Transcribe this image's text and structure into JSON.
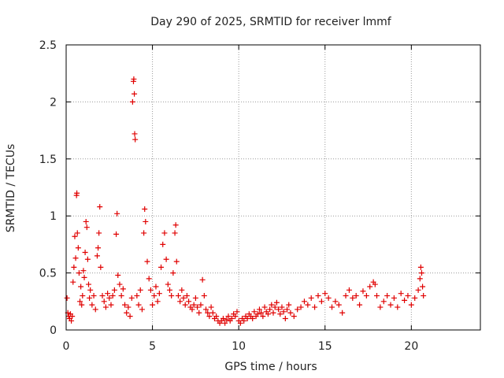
{
  "chart_data": {
    "type": "scatter",
    "title": "Day 290 of 2025, SRMTID for receiver lmmf",
    "xlabel": "GPS time / hours",
    "ylabel": "SRMTID / TECUs",
    "xlim": [
      0,
      24
    ],
    "ylim": [
      0,
      2.5
    ],
    "xticks": [
      0,
      5,
      10,
      15,
      20
    ],
    "yticks": [
      0,
      0.5,
      1,
      1.5,
      2,
      2.5
    ],
    "grid": true,
    "marker": "+",
    "series": [
      {
        "name": "SRMTID",
        "color": "#e00000",
        "points": [
          [
            0.05,
            0.28
          ],
          [
            0.1,
            0.15
          ],
          [
            0.15,
            0.12
          ],
          [
            0.2,
            0.1
          ],
          [
            0.25,
            0.14
          ],
          [
            0.3,
            0.08
          ],
          [
            0.35,
            0.12
          ],
          [
            0.4,
            0.42
          ],
          [
            0.45,
            0.55
          ],
          [
            0.5,
            0.82
          ],
          [
            0.55,
            0.63
          ],
          [
            0.6,
            1.18
          ],
          [
            0.62,
            1.2
          ],
          [
            0.65,
            0.85
          ],
          [
            0.7,
            0.72
          ],
          [
            0.75,
            0.5
          ],
          [
            0.8,
            0.25
          ],
          [
            0.85,
            0.38
          ],
          [
            0.9,
            0.22
          ],
          [
            0.95,
            0.3
          ],
          [
            1.0,
            0.52
          ],
          [
            1.05,
            0.46
          ],
          [
            1.1,
            0.68
          ],
          [
            1.15,
            0.95
          ],
          [
            1.2,
            0.9
          ],
          [
            1.25,
            0.62
          ],
          [
            1.3,
            0.4
          ],
          [
            1.35,
            0.28
          ],
          [
            1.4,
            0.35
          ],
          [
            1.5,
            0.22
          ],
          [
            1.6,
            0.3
          ],
          [
            1.7,
            0.18
          ],
          [
            1.8,
            0.65
          ],
          [
            1.85,
            0.72
          ],
          [
            1.9,
            0.85
          ],
          [
            1.95,
            1.08
          ],
          [
            2.0,
            0.55
          ],
          [
            2.1,
            0.3
          ],
          [
            2.2,
            0.25
          ],
          [
            2.3,
            0.2
          ],
          [
            2.4,
            0.32
          ],
          [
            2.5,
            0.28
          ],
          [
            2.6,
            0.22
          ],
          [
            2.7,
            0.3
          ],
          [
            2.8,
            0.35
          ],
          [
            2.9,
            0.84
          ],
          [
            2.95,
            1.02
          ],
          [
            3.0,
            0.48
          ],
          [
            3.1,
            0.4
          ],
          [
            3.2,
            0.3
          ],
          [
            3.3,
            0.36
          ],
          [
            3.4,
            0.22
          ],
          [
            3.5,
            0.15
          ],
          [
            3.6,
            0.2
          ],
          [
            3.7,
            0.12
          ],
          [
            3.8,
            0.28
          ],
          [
            3.85,
            2.0
          ],
          [
            3.9,
            2.18
          ],
          [
            3.92,
            2.2
          ],
          [
            3.95,
            2.07
          ],
          [
            3.97,
            1.72
          ],
          [
            4.0,
            1.67
          ],
          [
            4.1,
            0.3
          ],
          [
            4.2,
            0.22
          ],
          [
            4.3,
            0.35
          ],
          [
            4.4,
            0.18
          ],
          [
            4.5,
            0.85
          ],
          [
            4.55,
            1.06
          ],
          [
            4.6,
            0.95
          ],
          [
            4.7,
            0.6
          ],
          [
            4.8,
            0.45
          ],
          [
            4.9,
            0.35
          ],
          [
            5.0,
            0.22
          ],
          [
            5.1,
            0.3
          ],
          [
            5.2,
            0.38
          ],
          [
            5.3,
            0.25
          ],
          [
            5.4,
            0.32
          ],
          [
            5.5,
            0.55
          ],
          [
            5.6,
            0.75
          ],
          [
            5.7,
            0.85
          ],
          [
            5.8,
            0.62
          ],
          [
            5.9,
            0.4
          ],
          [
            6.0,
            0.35
          ],
          [
            6.1,
            0.3
          ],
          [
            6.2,
            0.5
          ],
          [
            6.3,
            0.85
          ],
          [
            6.35,
            0.92
          ],
          [
            6.4,
            0.6
          ],
          [
            6.5,
            0.3
          ],
          [
            6.6,
            0.25
          ],
          [
            6.7,
            0.35
          ],
          [
            6.8,
            0.28
          ],
          [
            6.9,
            0.22
          ],
          [
            7.0,
            0.3
          ],
          [
            7.1,
            0.25
          ],
          [
            7.2,
            0.2
          ],
          [
            7.3,
            0.18
          ],
          [
            7.4,
            0.22
          ],
          [
            7.5,
            0.28
          ],
          [
            7.6,
            0.2
          ],
          [
            7.7,
            0.15
          ],
          [
            7.8,
            0.22
          ],
          [
            7.9,
            0.44
          ],
          [
            8.0,
            0.3
          ],
          [
            8.1,
            0.18
          ],
          [
            8.2,
            0.15
          ],
          [
            8.3,
            0.12
          ],
          [
            8.4,
            0.2
          ],
          [
            8.5,
            0.15
          ],
          [
            8.6,
            0.1
          ],
          [
            8.7,
            0.12
          ],
          [
            8.8,
            0.08
          ],
          [
            8.9,
            0.06
          ],
          [
            9.0,
            0.08
          ],
          [
            9.1,
            0.1
          ],
          [
            9.2,
            0.06
          ],
          [
            9.3,
            0.09
          ],
          [
            9.4,
            0.12
          ],
          [
            9.5,
            0.08
          ],
          [
            9.6,
            0.1
          ],
          [
            9.7,
            0.14
          ],
          [
            9.8,
            0.12
          ],
          [
            9.9,
            0.16
          ],
          [
            10.0,
            0.08
          ],
          [
            10.1,
            0.06
          ],
          [
            10.2,
            0.1
          ],
          [
            10.3,
            0.08
          ],
          [
            10.4,
            0.12
          ],
          [
            10.5,
            0.1
          ],
          [
            10.6,
            0.14
          ],
          [
            10.7,
            0.12
          ],
          [
            10.8,
            0.1
          ],
          [
            10.9,
            0.16
          ],
          [
            11.0,
            0.12
          ],
          [
            11.1,
            0.14
          ],
          [
            11.2,
            0.18
          ],
          [
            11.3,
            0.15
          ],
          [
            11.4,
            0.12
          ],
          [
            11.5,
            0.2
          ],
          [
            11.6,
            0.16
          ],
          [
            11.7,
            0.14
          ],
          [
            11.8,
            0.18
          ],
          [
            11.9,
            0.22
          ],
          [
            12.0,
            0.15
          ],
          [
            12.1,
            0.2
          ],
          [
            12.2,
            0.24
          ],
          [
            12.3,
            0.18
          ],
          [
            12.4,
            0.14
          ],
          [
            12.5,
            0.2
          ],
          [
            12.6,
            0.16
          ],
          [
            12.7,
            0.1
          ],
          [
            12.8,
            0.18
          ],
          [
            12.9,
            0.22
          ],
          [
            13.0,
            0.15
          ],
          [
            13.2,
            0.12
          ],
          [
            13.4,
            0.18
          ],
          [
            13.6,
            0.2
          ],
          [
            13.8,
            0.25
          ],
          [
            14.0,
            0.22
          ],
          [
            14.2,
            0.28
          ],
          [
            14.4,
            0.2
          ],
          [
            14.6,
            0.3
          ],
          [
            14.8,
            0.25
          ],
          [
            15.0,
            0.32
          ],
          [
            15.2,
            0.28
          ],
          [
            15.4,
            0.2
          ],
          [
            15.6,
            0.25
          ],
          [
            15.8,
            0.22
          ],
          [
            16.0,
            0.15
          ],
          [
            16.2,
            0.3
          ],
          [
            16.4,
            0.35
          ],
          [
            16.6,
            0.28
          ],
          [
            16.8,
            0.3
          ],
          [
            17.0,
            0.22
          ],
          [
            17.2,
            0.34
          ],
          [
            17.4,
            0.3
          ],
          [
            17.6,
            0.38
          ],
          [
            17.8,
            0.42
          ],
          [
            17.9,
            0.4
          ],
          [
            18.0,
            0.3
          ],
          [
            18.2,
            0.2
          ],
          [
            18.4,
            0.25
          ],
          [
            18.6,
            0.3
          ],
          [
            18.8,
            0.22
          ],
          [
            19.0,
            0.28
          ],
          [
            19.2,
            0.2
          ],
          [
            19.4,
            0.32
          ],
          [
            19.6,
            0.26
          ],
          [
            19.8,
            0.3
          ],
          [
            20.0,
            0.22
          ],
          [
            20.2,
            0.28
          ],
          [
            20.4,
            0.35
          ],
          [
            20.5,
            0.45
          ],
          [
            20.55,
            0.55
          ],
          [
            20.6,
            0.5
          ],
          [
            20.65,
            0.38
          ],
          [
            20.7,
            0.3
          ]
        ]
      }
    ]
  }
}
